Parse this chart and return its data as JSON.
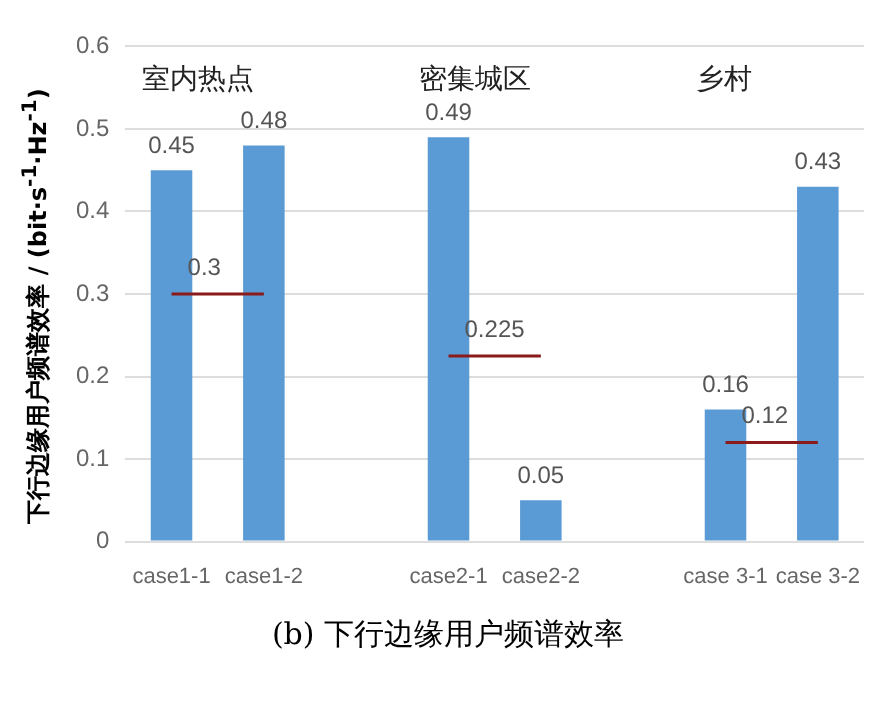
{
  "chart_data": {
    "type": "bar",
    "ylabel": "下行边缘用户频谱效率 / (bit·s$^{-1}$·Hz$^{-1}$)",
    "categories": [
      "case1-1",
      "case1-2",
      null,
      "case2-1",
      "case2-2",
      null,
      "case 3-1",
      "case 3-2"
    ],
    "series": [
      {
        "color": "#5b9bd5",
        "values": [
          0.45,
          0.48,
          null,
          0.49,
          0.05,
          null,
          0.16,
          0.43
        ]
      },
      {
        "type": "line",
        "color": "#8b1a1a",
        "values": [
          0.3,
          0.3,
          null,
          null,
          null,
          null,
          null,
          null
        ],
        "value_labels": [
          "0.3",
          null,
          null,
          null,
          null,
          null,
          null,
          null
        ]
      },
      {
        "type": "line",
        "color": "#8b1a1a",
        "values": [
          null,
          null,
          null,
          0.225,
          0.225,
          null,
          null,
          null
        ],
        "value_labels": [
          null,
          null,
          null,
          "0.225",
          null,
          null,
          null,
          null
        ]
      },
      {
        "type": "line",
        "color": "#8b1a1a",
        "values": [
          null,
          null,
          null,
          null,
          null,
          null,
          0.12,
          0.12
        ],
        "value_labels": [
          null,
          null,
          null,
          null,
          null,
          null,
          "0.12",
          null
        ]
      }
    ],
    "data_labels": true,
    "ylim": [
      0,
      0.6
    ],
    "yticks": [
      0,
      0.1,
      0.2,
      0.3,
      0.4,
      0.5,
      0.6
    ],
    "grid": "y",
    "legend": false,
    "marker": "none",
    "annotations": [
      "室内热点",
      "密集城区",
      "乡村",
      "(b)  下行边缘用户频谱效率"
    ]
  }
}
